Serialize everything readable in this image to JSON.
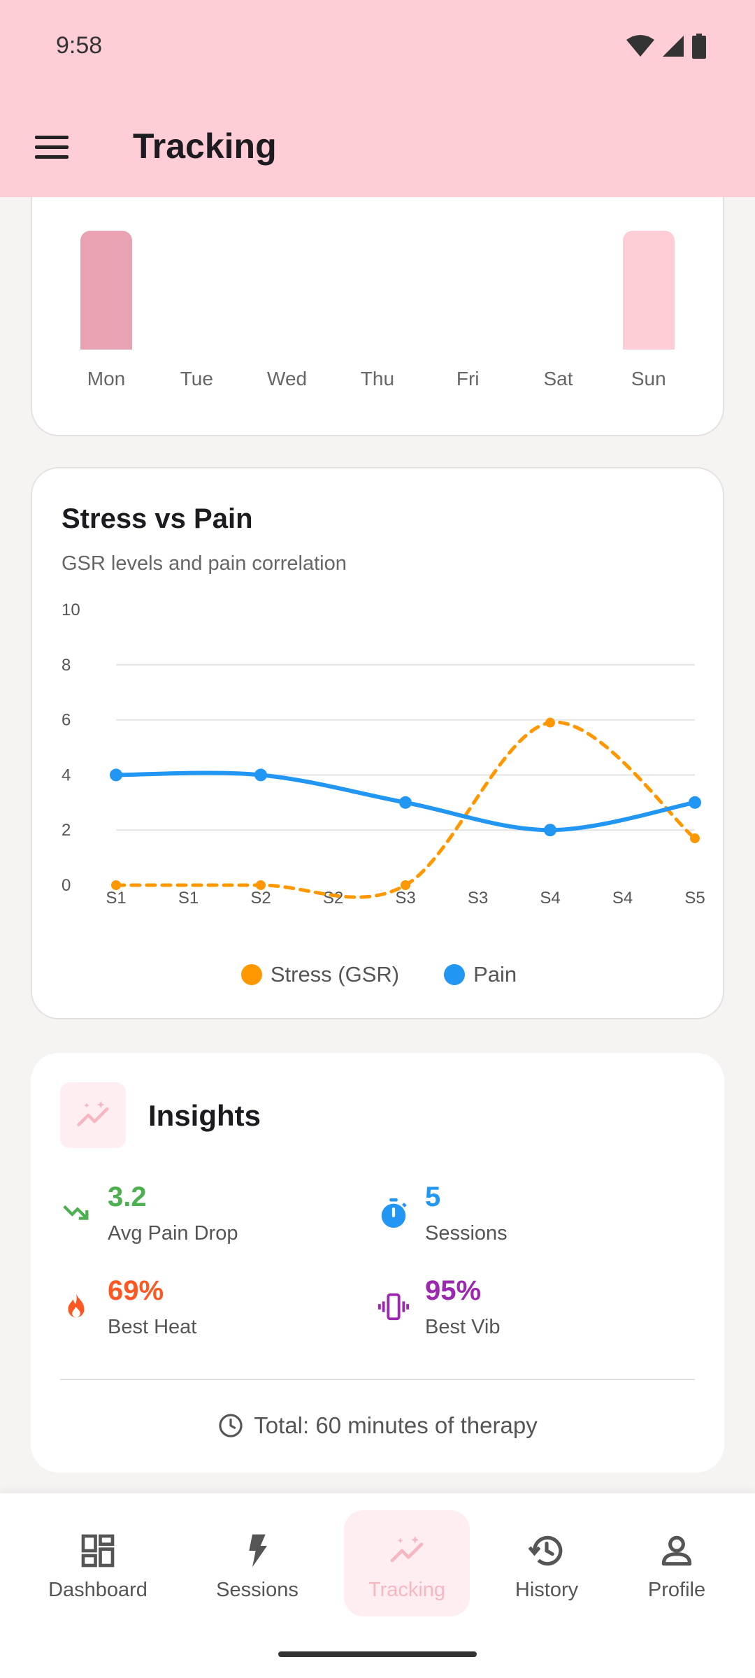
{
  "status_bar": {
    "time": "9:58"
  },
  "appbar": {
    "title": "Tracking"
  },
  "weekly_chart": {
    "days": [
      {
        "label": "Mon",
        "level": 1.0,
        "color": "#e8a2b2"
      },
      {
        "label": "Tue",
        "level": 0,
        "color": ""
      },
      {
        "label": "Wed",
        "level": 0,
        "color": ""
      },
      {
        "label": "Thu",
        "level": 0,
        "color": ""
      },
      {
        "label": "Fri",
        "level": 0,
        "color": ""
      },
      {
        "label": "Sat",
        "level": 0,
        "color": ""
      },
      {
        "label": "Sun",
        "level": 1.0,
        "color": "#ffcdd6"
      }
    ]
  },
  "stress_card": {
    "title": "Stress vs Pain",
    "subtitle": "GSR levels and pain correlation"
  },
  "chart_data": {
    "type": "line",
    "title": "Stress vs Pain",
    "subtitle": "GSR levels and pain correlation",
    "x_tick_labels": [
      "S1",
      "S1",
      "S2",
      "S2",
      "S3",
      "S3",
      "S4",
      "S4",
      "S5"
    ],
    "y_tick_labels": [
      "0",
      "2",
      "4",
      "6",
      "8",
      "10"
    ],
    "ylim": [
      0,
      10
    ],
    "xlim": [
      0,
      4
    ],
    "grid": true,
    "legend": "bottom-center",
    "series": [
      {
        "name": "Stress (GSR)",
        "color": "#ff9800",
        "style": "dashed",
        "x": [
          0,
          1,
          2,
          3,
          4
        ],
        "y": [
          0,
          0,
          0,
          5.9,
          1.7
        ]
      },
      {
        "name": "Pain",
        "color": "#2196f3",
        "style": "solid",
        "x": [
          0,
          1,
          2,
          3,
          4
        ],
        "y": [
          4,
          4,
          3,
          2,
          3
        ]
      }
    ]
  },
  "insights": {
    "title": "Insights",
    "icon": "trending-chart-icon",
    "stats": [
      {
        "value": "3.2",
        "label": "Avg Pain Drop",
        "color": "#4caf50",
        "icon": "trending-down-icon"
      },
      {
        "value": "5",
        "label": "Sessions",
        "color": "#2196f3",
        "icon": "timer-icon"
      },
      {
        "value": "69%",
        "label": "Best Heat",
        "color": "#ff5722",
        "icon": "flame-icon"
      },
      {
        "value": "95%",
        "label": "Best Vib",
        "color": "#9c27b0",
        "icon": "vibration-icon"
      }
    ],
    "total": "Total: 60 minutes of therapy"
  },
  "nav": {
    "items": [
      {
        "label": "Dashboard",
        "icon": "dashboard-icon",
        "active": false
      },
      {
        "label": "Sessions",
        "icon": "bolt-icon",
        "active": false
      },
      {
        "label": "Tracking",
        "icon": "tracking-icon",
        "active": true
      },
      {
        "label": "History",
        "icon": "history-icon",
        "active": false
      },
      {
        "label": "Profile",
        "icon": "profile-icon",
        "active": false
      }
    ]
  }
}
